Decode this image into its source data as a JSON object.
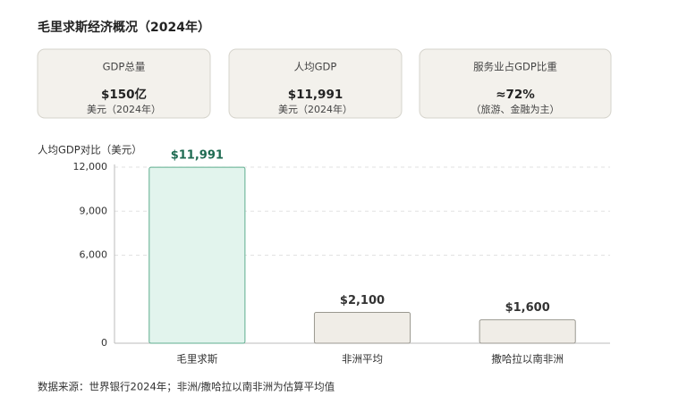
{
  "title": "毛里求斯经济概况（2024年）",
  "cards": [
    {
      "label": "GDP总量",
      "value": "$150亿",
      "sub": "美元（2024年）"
    },
    {
      "label": "人均GDP",
      "value": "$11,991",
      "sub": "美元（2024年）"
    },
    {
      "label": "服务业占GDP比重",
      "value": "≈72%",
      "sub": "（旅游、金融为主）"
    }
  ],
  "chart_data": {
    "type": "bar",
    "ylabel": "人均GDP对比（美元）",
    "categories": [
      "毛里求斯",
      "非洲平均",
      "撒哈拉以南非洲"
    ],
    "values": [
      11991,
      2100,
      1600
    ],
    "value_labels": [
      "$11,991",
      "$2,100",
      "$1,600"
    ],
    "colors": [
      "#e2f4ed",
      "#f0ede7",
      "#f0ede7"
    ],
    "stroke_colors": [
      "#5fae8f",
      "#9a9890",
      "#9a9890"
    ],
    "label_colors": [
      "#1f6b52",
      "#333333",
      "#333333"
    ],
    "ylim": [
      0,
      12000
    ],
    "yticks": [
      {
        "value": 0,
        "label": "0"
      },
      {
        "value": 6000,
        "label": "6,000"
      },
      {
        "value": 9000,
        "label": "9,000"
      },
      {
        "value": 12000,
        "label": "12,000"
      }
    ],
    "grid": true
  },
  "source": "数据来源：世界银行2024年；非洲/撒哈拉以南非洲为估算平均值"
}
